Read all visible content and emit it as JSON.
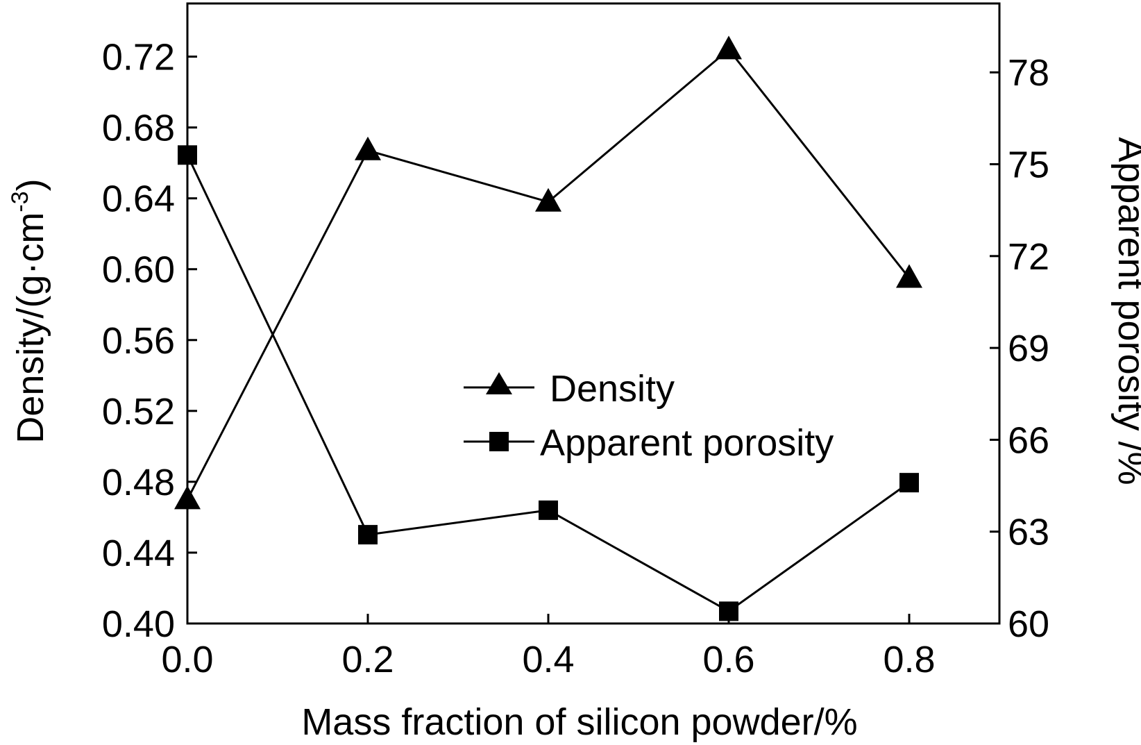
{
  "chart_data": {
    "type": "line",
    "x": [
      0.0,
      0.2,
      0.4,
      0.6,
      0.8
    ],
    "xlabel": "Mass fraction of silicon powder/%",
    "xlim": [
      0.0,
      0.9
    ],
    "xticks": [
      "0.0",
      "0.2",
      "0.4",
      "0.6",
      "0.8"
    ],
    "ylabel_left": "Density/(g·cm",
    "ylabel_left_sup": "-3",
    "ylabel_left_close": ")",
    "ylim_left": [
      0.4,
      0.75
    ],
    "yticks_left": [
      "0.40",
      "0.44",
      "0.48",
      "0.52",
      "0.56",
      "0.60",
      "0.64",
      "0.68",
      "0.72"
    ],
    "ylabel_right": "Apparent porosity /%",
    "ylim_right": [
      60,
      80.25
    ],
    "yticks_right": [
      "60",
      "63",
      "66",
      "69",
      "72",
      "75",
      "78"
    ],
    "legend_position": "center",
    "series": [
      {
        "name": "Density",
        "axis": "left",
        "marker": "triangle",
        "values": [
          0.47,
          0.667,
          0.638,
          0.724,
          0.595
        ]
      },
      {
        "name": "Apparent porosity",
        "axis": "right",
        "marker": "square",
        "values": [
          75.3,
          62.9,
          63.7,
          60.4,
          64.6
        ]
      }
    ]
  }
}
